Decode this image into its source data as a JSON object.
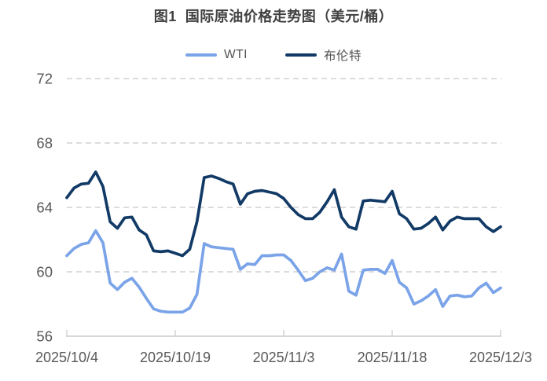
{
  "title": "图1  国际原油价格走势图（美元/桶）",
  "colors": {
    "wti": "#7AA3E8",
    "brent": "#123A66",
    "title_text": "#404040",
    "axis_text": "#595959",
    "legend_text": "#525252",
    "gridline": "#C6C6C6",
    "axis_line": "#CCCCCC",
    "background": "#FFFFFF"
  },
  "chart_data": {
    "type": "line",
    "title": "图1 国际原油价格走势图（美元/桶）",
    "unit": "美元/桶",
    "x_start_date": "2025/10/4",
    "x_end_date": "2025/12/3",
    "x_tick_labels": [
      "2025/10/4",
      "2025/10/19",
      "2025/11/3",
      "2025/11/18",
      "2025/12/3"
    ],
    "x_tick_indices": [
      0,
      15,
      30,
      45,
      60
    ],
    "y_ticks": [
      72,
      68,
      64,
      60,
      56
    ],
    "ylim": [
      56,
      72
    ],
    "grid": "horizontal-dashed",
    "legend_position": "top-center",
    "series": [
      {
        "name": "WTI",
        "color": "#7AA3E8",
        "values": [
          61.0,
          61.45,
          61.7,
          61.8,
          62.55,
          61.8,
          59.3,
          58.9,
          59.35,
          59.6,
          59.05,
          58.35,
          57.7,
          57.55,
          57.5,
          57.5,
          57.5,
          57.75,
          58.6,
          61.75,
          61.55,
          61.5,
          61.45,
          61.4,
          60.15,
          60.5,
          60.45,
          61.0,
          61.0,
          61.05,
          61.05,
          60.7,
          60.1,
          59.45,
          59.6,
          60.0,
          60.25,
          60.1,
          61.1,
          58.8,
          58.55,
          60.1,
          60.15,
          60.15,
          59.9,
          60.7,
          59.35,
          59.0,
          58.0,
          58.2,
          58.5,
          58.9,
          57.85,
          58.5,
          58.55,
          58.45,
          58.5,
          59.0,
          59.3,
          58.7,
          59.0
        ]
      },
      {
        "name": "布伦特",
        "color": "#123A66",
        "values": [
          64.6,
          65.2,
          65.45,
          65.5,
          66.2,
          65.3,
          63.1,
          62.7,
          63.35,
          63.4,
          62.6,
          62.3,
          61.3,
          61.25,
          61.3,
          61.15,
          61.0,
          61.4,
          63.1,
          65.85,
          65.95,
          65.8,
          65.6,
          65.45,
          64.2,
          64.85,
          65.0,
          65.05,
          64.95,
          64.85,
          64.55,
          64.0,
          63.55,
          63.3,
          63.3,
          63.7,
          64.35,
          65.1,
          63.4,
          62.8,
          62.65,
          64.4,
          64.45,
          64.4,
          64.35,
          65.0,
          63.6,
          63.3,
          62.65,
          62.7,
          63.0,
          63.4,
          62.6,
          63.15,
          63.4,
          63.3,
          63.3,
          63.3,
          62.8,
          62.5,
          62.8
        ]
      }
    ]
  }
}
